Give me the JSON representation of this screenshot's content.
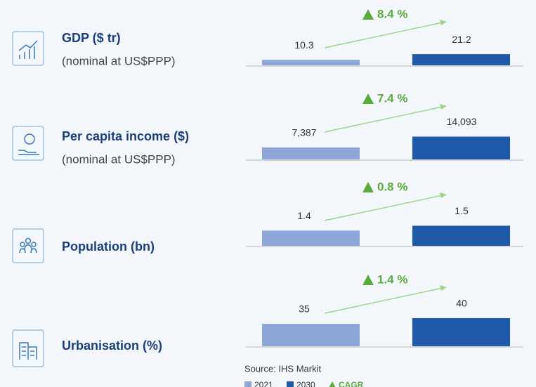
{
  "chart_data": [
    {
      "type": "bar",
      "title": "GDP ($ tr)",
      "subtitle": "(nominal at US$PPP)",
      "values": [
        10.3,
        21.2
      ],
      "cagr": "8.4 %",
      "ylim": [
        0,
        80
      ]
    },
    {
      "type": "bar",
      "title": "Per capita income ($)",
      "subtitle": "(nominal at US$PPP)",
      "values": [
        7387,
        14093
      ],
      "value_labels": [
        "7,387",
        "14,093"
      ],
      "cagr": "7.4 %",
      "ylim": [
        0,
        26000
      ]
    },
    {
      "type": "bar",
      "title": "Population (bn)",
      "values": [
        1.4,
        1.5
      ],
      "cagr": "0.8 %",
      "ylim": [
        1.09,
        1.95
      ]
    },
    {
      "type": "bar",
      "title": "Urbanisation (%)",
      "values": [
        35,
        40
      ],
      "cagr": "1.4 %",
      "ylim": [
        15,
        52.5
      ]
    }
  ],
  "source": "Source: IHS Markit",
  "legend": [
    {
      "name": "2021",
      "color": "#8fa6d8"
    },
    {
      "name": "2030",
      "color": "#1f5aa8"
    },
    {
      "name": "CAGR",
      "color": "#5aab3c"
    }
  ]
}
